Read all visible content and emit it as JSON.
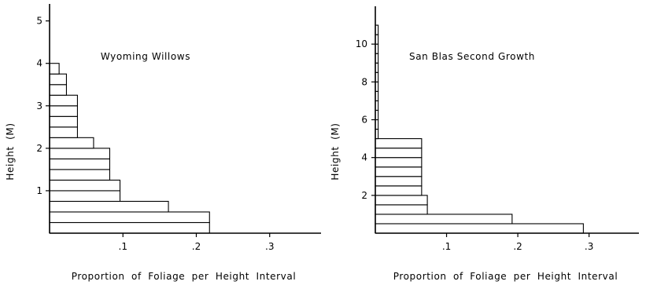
{
  "chart_data": [
    {
      "type": "bar",
      "orientation": "horizontal",
      "title": "Wyoming Willows",
      "xlabel": "Proportion of Foliage per Height Interval",
      "ylabel": "Height (M)",
      "xlim": [
        0,
        0.37
      ],
      "ylim": [
        0,
        5.4
      ],
      "xticks": [
        0.1,
        0.2,
        0.3
      ],
      "xtick_labels": [
        ".1",
        ".2",
        ".3"
      ],
      "yticks": [
        1,
        2,
        3,
        4,
        5
      ],
      "ytick_labels": [
        "1",
        "2",
        "3",
        "4",
        "5"
      ],
      "bar_height": 0.25,
      "bars": [
        {
          "y": 0.0,
          "value": 0.218
        },
        {
          "y": 0.25,
          "value": 0.218
        },
        {
          "y": 0.5,
          "value": 0.162
        },
        {
          "y": 0.75,
          "value": 0.096
        },
        {
          "y": 1.0,
          "value": 0.096
        },
        {
          "y": 1.25,
          "value": 0.082
        },
        {
          "y": 1.5,
          "value": 0.082
        },
        {
          "y": 1.75,
          "value": 0.082
        },
        {
          "y": 2.0,
          "value": 0.06
        },
        {
          "y": 2.25,
          "value": 0.038
        },
        {
          "y": 2.5,
          "value": 0.038
        },
        {
          "y": 2.75,
          "value": 0.038
        },
        {
          "y": 3.0,
          "value": 0.038
        },
        {
          "y": 3.25,
          "value": 0.023
        },
        {
          "y": 3.5,
          "value": 0.023
        },
        {
          "y": 3.75,
          "value": 0.013
        }
      ],
      "grid": false
    },
    {
      "type": "bar",
      "orientation": "horizontal",
      "title": "San Blas Second Growth",
      "xlabel": "Proportion of Foliage per Height Interval",
      "ylabel": "Height (M)",
      "xlim": [
        0,
        0.37
      ],
      "ylim": [
        0,
        12
      ],
      "xticks": [
        0.1,
        0.2,
        0.3
      ],
      "xtick_labels": [
        ".1",
        ".2",
        ".3"
      ],
      "yticks": [
        2,
        4,
        6,
        8,
        10
      ],
      "ytick_labels": [
        "2",
        "4",
        "6",
        "8",
        "10"
      ],
      "bar_height": 0.5,
      "bars": [
        {
          "y": 0.0,
          "value": 0.292
        },
        {
          "y": 0.5,
          "value": 0.192
        },
        {
          "y": 1.0,
          "value": 0.073
        },
        {
          "y": 1.5,
          "value": 0.073
        },
        {
          "y": 2.0,
          "value": 0.065
        },
        {
          "y": 2.5,
          "value": 0.065
        },
        {
          "y": 3.0,
          "value": 0.065
        },
        {
          "y": 3.5,
          "value": 0.065
        },
        {
          "y": 4.0,
          "value": 0.065
        },
        {
          "y": 4.5,
          "value": 0.065
        },
        {
          "y": 5.0,
          "value": 0.004
        },
        {
          "y": 5.5,
          "value": 0.004
        },
        {
          "y": 6.0,
          "value": 0.004
        },
        {
          "y": 6.5,
          "value": 0.004
        },
        {
          "y": 7.0,
          "value": 0.004
        },
        {
          "y": 7.5,
          "value": 0.004
        },
        {
          "y": 8.0,
          "value": 0.004
        },
        {
          "y": 8.5,
          "value": 0.004
        },
        {
          "y": 9.0,
          "value": 0.004
        },
        {
          "y": 9.5,
          "value": 0.004
        },
        {
          "y": 10.0,
          "value": 0.004
        },
        {
          "y": 10.5,
          "value": 0.004
        }
      ],
      "grid": false
    }
  ]
}
